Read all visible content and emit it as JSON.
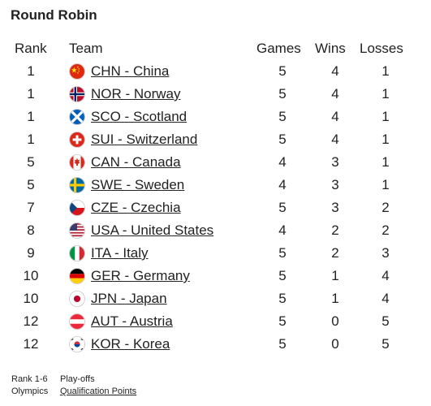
{
  "title": "Round Robin",
  "headers": {
    "rank": "Rank",
    "team": "Team",
    "games": "Games",
    "wins": "Wins",
    "losses": "Losses"
  },
  "rows": [
    {
      "rank": "1",
      "team": "CHN - China",
      "flag": "china-flag-icon",
      "games": "5",
      "wins": "4",
      "losses": "1"
    },
    {
      "rank": "1",
      "team": "NOR - Norway",
      "flag": "norway-flag-icon",
      "games": "5",
      "wins": "4",
      "losses": "1"
    },
    {
      "rank": "1",
      "team": "SCO - Scotland",
      "flag": "scotland-flag-icon",
      "games": "5",
      "wins": "4",
      "losses": "1"
    },
    {
      "rank": "1",
      "team": "SUI - Switzerland",
      "flag": "switzerland-flag-icon",
      "games": "5",
      "wins": "4",
      "losses": "1"
    },
    {
      "rank": "5",
      "team": "CAN - Canada",
      "flag": "canada-flag-icon",
      "games": "4",
      "wins": "3",
      "losses": "1"
    },
    {
      "rank": "5",
      "team": "SWE - Sweden",
      "flag": "sweden-flag-icon",
      "games": "4",
      "wins": "3",
      "losses": "1"
    },
    {
      "rank": "7",
      "team": "CZE - Czechia",
      "flag": "czechia-flag-icon",
      "games": "5",
      "wins": "3",
      "losses": "2"
    },
    {
      "rank": "8",
      "team": "USA - United States",
      "flag": "usa-flag-icon",
      "games": "4",
      "wins": "2",
      "losses": "2"
    },
    {
      "rank": "9",
      "team": "ITA - Italy",
      "flag": "italy-flag-icon",
      "games": "5",
      "wins": "2",
      "losses": "3"
    },
    {
      "rank": "10",
      "team": "GER - Germany",
      "flag": "germany-flag-icon",
      "games": "5",
      "wins": "1",
      "losses": "4"
    },
    {
      "rank": "10",
      "team": "JPN - Japan",
      "flag": "japan-flag-icon",
      "games": "5",
      "wins": "1",
      "losses": "4"
    },
    {
      "rank": "12",
      "team": "AUT - Austria",
      "flag": "austria-flag-icon",
      "games": "5",
      "wins": "0",
      "losses": "5"
    },
    {
      "rank": "12",
      "team": "KOR - Korea",
      "flag": "korea-flag-icon",
      "games": "5",
      "wins": "0",
      "losses": "5"
    }
  ],
  "footer": {
    "row1_label": "Rank 1-6",
    "row1_value": "Play-offs",
    "row2_label": "Olympics",
    "row2_link": "Qualification Points"
  }
}
